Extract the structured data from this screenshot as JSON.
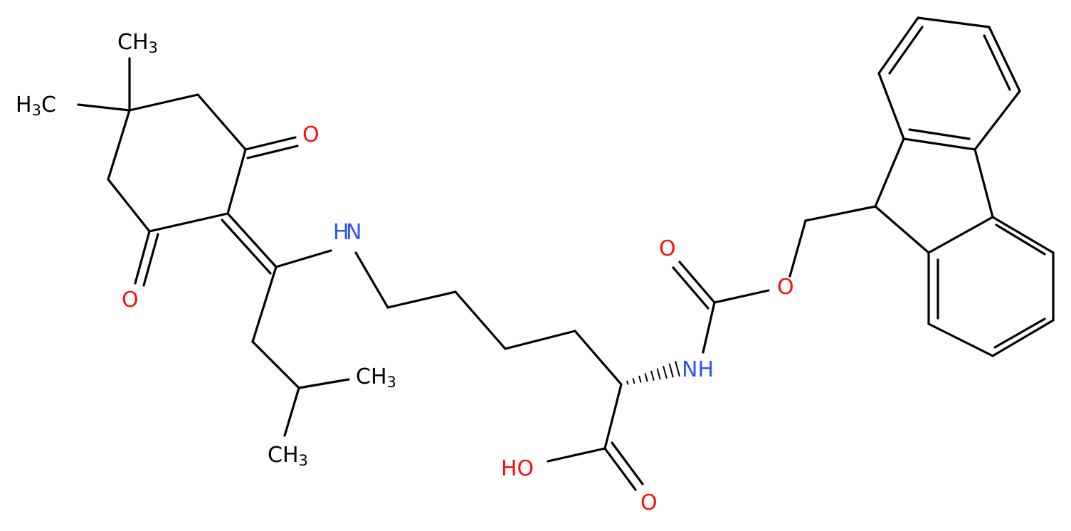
{
  "atoms": [
    {
      "parts": [
        {
          "text": "CH"
        },
        {
          "text": "3",
          "subscript": true
        }
      ]
    },
    {
      "parts": [
        {
          "text": "H"
        },
        {
          "text": "3",
          "subscript": true
        },
        {
          "text": "C"
        }
      ]
    },
    {
      "parts": [
        {
          "text": "O"
        }
      ]
    },
    {
      "parts": [
        {
          "text": "O"
        }
      ]
    },
    {
      "parts": [
        {
          "text": "H"
        }
      ]
    },
    {
      "parts": [
        {
          "text": "N"
        }
      ]
    },
    {
      "parts": [
        {
          "text": "CH"
        },
        {
          "text": "3",
          "subscript": true
        }
      ]
    },
    {
      "parts": [
        {
          "text": "CH"
        },
        {
          "text": "3",
          "subscript": true
        }
      ]
    },
    {
      "parts": [
        {
          "text": "O"
        }
      ]
    },
    {
      "parts": [
        {
          "text": "O"
        }
      ]
    },
    {
      "parts": [
        {
          "text": "NH"
        }
      ]
    },
    {
      "parts": [
        {
          "text": "HO"
        }
      ]
    },
    {
      "parts": [
        {
          "text": "O"
        }
      ]
    }
  ]
}
